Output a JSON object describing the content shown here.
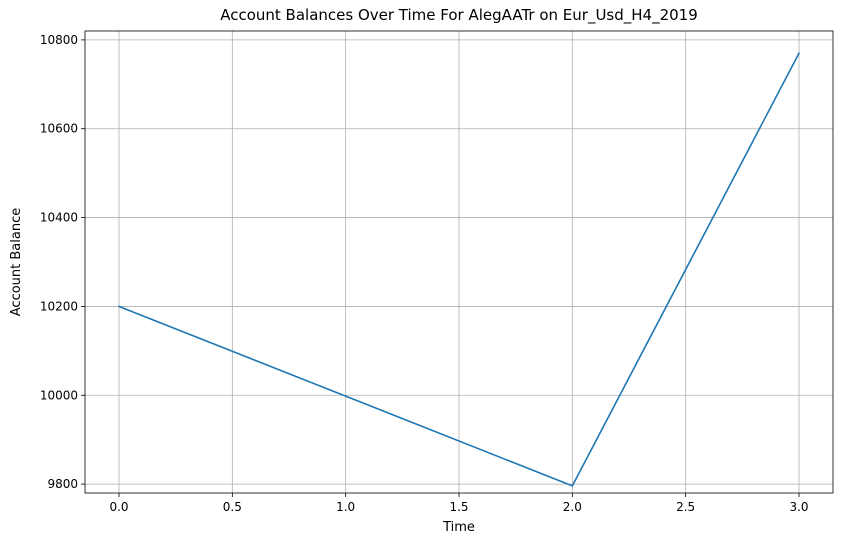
{
  "chart_data": {
    "type": "line",
    "title": "Account Balances Over Time For AlegAATr on Eur_Usd_H4_2019",
    "xlabel": "Time",
    "ylabel": "Account Balance",
    "xlim": [
      -0.15,
      3.15
    ],
    "ylim": [
      9780,
      10820
    ],
    "x_ticks": [
      0.0,
      0.5,
      1.0,
      1.5,
      2.0,
      2.5,
      3.0
    ],
    "x_tick_labels": [
      "0.0",
      "0.5",
      "1.0",
      "1.5",
      "2.0",
      "2.5",
      "3.0"
    ],
    "y_ticks": [
      9800,
      10000,
      10200,
      10400,
      10600,
      10800
    ],
    "y_tick_labels": [
      "9800",
      "10000",
      "10200",
      "10400",
      "10600",
      "10800"
    ],
    "grid": true,
    "series": [
      {
        "x": [
          0,
          2,
          3
        ],
        "values": [
          10200,
          9796,
          10770
        ],
        "color": "#1f77b4"
      }
    ]
  }
}
